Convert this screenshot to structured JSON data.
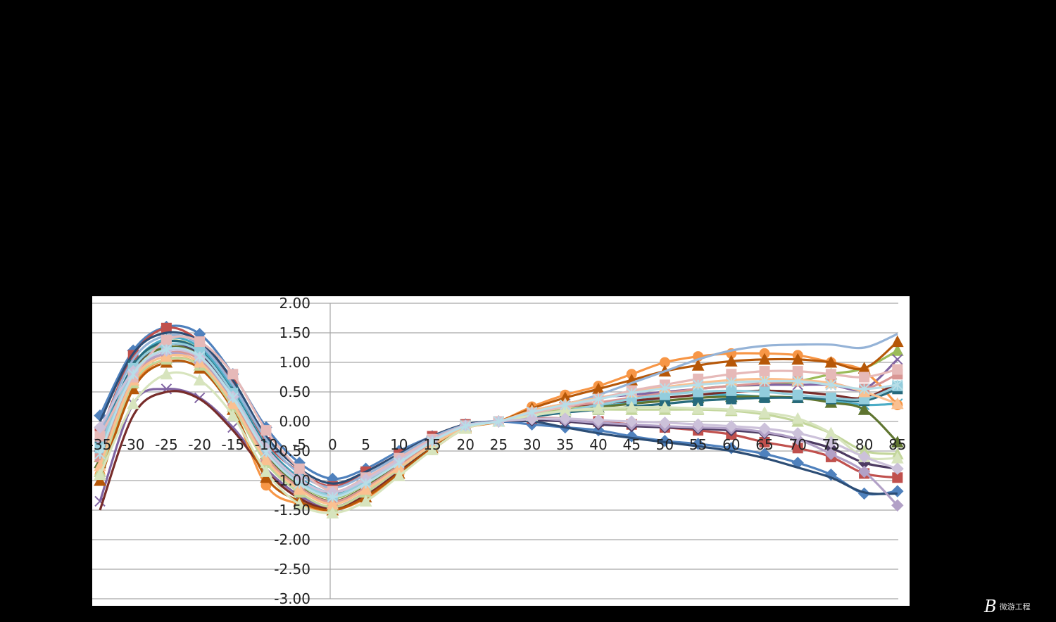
{
  "watermark": {
    "logo_letter": "B",
    "text": "微游工程"
  },
  "chart_data": {
    "type": "line",
    "title": "",
    "xlabel": "",
    "ylabel": "",
    "categories": [
      -35,
      -30,
      -25,
      -20,
      -15,
      -10,
      -5,
      0,
      5,
      10,
      15,
      20,
      25,
      30,
      35,
      40,
      45,
      50,
      55,
      60,
      65,
      70,
      75,
      80,
      85
    ],
    "x_tick_labels": [
      "-35",
      "-30",
      "-25",
      "-20",
      "-15",
      "-10",
      "-5",
      "0",
      "5",
      "10",
      "15",
      "20",
      "25",
      "30",
      "35",
      "40",
      "45",
      "50",
      "55",
      "60",
      "65",
      "70",
      "75",
      "80",
      "85"
    ],
    "y_tick_labels": [
      "2.00",
      "1.50",
      "1.00",
      "0.50",
      "0.00",
      "-0.50",
      "-1.00",
      "-1.50",
      "-2.00",
      "-2.50",
      "-3.00"
    ],
    "ylim": [
      -3.0,
      2.0
    ],
    "y_step": 0.5,
    "grid": true,
    "legend": "none",
    "series": [
      {
        "color": "#4f81bd",
        "marker": "diamond",
        "values": [
          0.1,
          1.2,
          1.6,
          1.48,
          0.8,
          -0.1,
          -0.7,
          -0.97,
          -0.8,
          -0.5,
          -0.25,
          -0.05,
          0.0,
          -0.05,
          -0.1,
          -0.15,
          -0.25,
          -0.33,
          -0.38,
          -0.45,
          -0.55,
          -0.7,
          -0.9,
          -1.22,
          -1.18
        ]
      },
      {
        "color": "#c0504d",
        "marker": "square",
        "values": [
          -0.2,
          1.12,
          1.58,
          1.35,
          0.65,
          -0.35,
          -0.85,
          -1.1,
          -0.85,
          -0.55,
          -0.25,
          -0.05,
          0.0,
          0.05,
          0.05,
          0.0,
          -0.05,
          -0.1,
          -0.15,
          -0.22,
          -0.35,
          -0.45,
          -0.6,
          -0.88,
          -0.95
        ]
      },
      {
        "color": "#9bbb59",
        "marker": "triangle",
        "values": [
          -0.6,
          0.9,
          1.35,
          1.2,
          0.45,
          -0.5,
          -1.05,
          -1.3,
          -1.05,
          -0.7,
          -0.35,
          -0.08,
          0.0,
          0.12,
          0.2,
          0.28,
          0.38,
          0.45,
          0.55,
          0.6,
          0.62,
          0.68,
          0.8,
          0.9,
          1.2
        ]
      },
      {
        "color": "#8064a2",
        "marker": "x",
        "values": [
          -1.35,
          0.3,
          0.55,
          0.4,
          -0.1,
          -0.8,
          -1.25,
          -1.45,
          -1.2,
          -0.8,
          -0.4,
          -0.1,
          0.0,
          0.18,
          0.3,
          0.4,
          0.45,
          0.5,
          0.55,
          0.6,
          0.62,
          0.62,
          0.62,
          0.55,
          1.05
        ]
      },
      {
        "color": "#4bacc6",
        "marker": "star",
        "values": [
          -0.3,
          0.95,
          1.4,
          1.25,
          0.55,
          -0.4,
          -0.95,
          -1.2,
          -0.95,
          -0.65,
          -0.3,
          -0.06,
          0.0,
          0.1,
          0.18,
          0.25,
          0.32,
          0.4,
          0.45,
          0.45,
          0.42,
          0.4,
          0.35,
          0.28,
          0.3
        ]
      },
      {
        "color": "#f79646",
        "marker": "circle",
        "values": [
          -0.9,
          0.6,
          1.05,
          0.95,
          0.2,
          -1.08,
          -1.4,
          -1.5,
          -1.3,
          -0.9,
          -0.48,
          -0.12,
          0.0,
          0.25,
          0.45,
          0.6,
          0.8,
          1.0,
          1.1,
          1.15,
          1.15,
          1.12,
          1.0,
          0.85,
          0.28
        ]
      },
      {
        "color": "#2c4d75",
        "marker": "none",
        "values": [
          0.0,
          1.15,
          1.5,
          1.35,
          0.7,
          -0.25,
          -0.8,
          -1.05,
          -0.85,
          -0.55,
          -0.25,
          -0.05,
          0.0,
          0.0,
          -0.1,
          -0.2,
          -0.28,
          -0.35,
          -0.42,
          -0.5,
          -0.62,
          -0.78,
          -0.95,
          -1.2,
          -1.22
        ]
      },
      {
        "color": "#772c2a",
        "marker": "none",
        "values": [
          -1.5,
          0.1,
          0.5,
          0.38,
          -0.15,
          -0.85,
          -1.3,
          -1.48,
          -1.25,
          -0.85,
          -0.42,
          -0.1,
          0.0,
          0.15,
          0.25,
          0.3,
          0.35,
          0.4,
          0.45,
          0.5,
          0.52,
          0.5,
          0.45,
          0.4,
          0.65
        ]
      },
      {
        "color": "#5f7530",
        "marker": "triangle",
        "values": [
          -0.7,
          0.85,
          1.25,
          1.12,
          0.4,
          -0.55,
          -1.1,
          -1.35,
          -1.1,
          -0.72,
          -0.36,
          -0.08,
          0.0,
          0.1,
          0.18,
          0.24,
          0.3,
          0.35,
          0.4,
          0.42,
          0.42,
          0.4,
          0.32,
          0.2,
          -0.35
        ]
      },
      {
        "color": "#4d3b62",
        "marker": "diamond",
        "values": [
          -0.5,
          0.88,
          1.3,
          1.15,
          0.45,
          -0.45,
          -1.0,
          -1.25,
          -1.0,
          -0.66,
          -0.32,
          -0.07,
          0.0,
          0.02,
          0.0,
          -0.05,
          -0.08,
          -0.1,
          -0.12,
          -0.15,
          -0.2,
          -0.3,
          -0.45,
          -0.7,
          -0.8
        ]
      },
      {
        "color": "#276a7c",
        "marker": "square",
        "values": [
          -0.4,
          0.95,
          1.35,
          1.2,
          0.5,
          -0.42,
          -0.98,
          -1.22,
          -0.98,
          -0.65,
          -0.31,
          -0.07,
          0.0,
          0.08,
          0.15,
          0.2,
          0.25,
          0.3,
          0.35,
          0.38,
          0.4,
          0.4,
          0.38,
          0.35,
          0.55
        ]
      },
      {
        "color": "#b65708",
        "marker": "triangle",
        "values": [
          -1.0,
          0.55,
          1.0,
          0.9,
          0.2,
          -0.95,
          -1.35,
          -1.5,
          -1.28,
          -0.88,
          -0.45,
          -0.11,
          0.0,
          0.22,
          0.4,
          0.55,
          0.7,
          0.85,
          0.95,
          1.02,
          1.05,
          1.05,
          1.0,
          0.9,
          1.35
        ]
      },
      {
        "color": "#95b3d7",
        "marker": "none",
        "values": [
          -0.2,
          1.05,
          1.45,
          1.3,
          0.62,
          -0.3,
          -0.88,
          -1.12,
          -0.9,
          -0.58,
          -0.27,
          -0.06,
          0.0,
          0.12,
          0.28,
          0.45,
          0.65,
          0.85,
          1.05,
          1.2,
          1.28,
          1.3,
          1.3,
          1.25,
          1.48
        ]
      },
      {
        "color": "#d99694",
        "marker": "square",
        "values": [
          -0.6,
          0.75,
          1.15,
          1.05,
          0.35,
          -0.6,
          -1.12,
          -1.36,
          -1.12,
          -0.75,
          -0.38,
          -0.09,
          0.0,
          0.15,
          0.25,
          0.32,
          0.4,
          0.48,
          0.55,
          0.6,
          0.65,
          0.68,
          0.65,
          0.55,
          0.8
        ]
      },
      {
        "color": "#c3d69b",
        "marker": "triangle",
        "values": [
          -0.85,
          0.65,
          1.05,
          0.95,
          0.25,
          -0.7,
          -1.2,
          -1.45,
          -1.2,
          -0.8,
          -0.4,
          -0.1,
          0.0,
          0.12,
          0.18,
          0.2,
          0.2,
          0.2,
          0.2,
          0.18,
          0.12,
          0.0,
          -0.2,
          -0.5,
          -0.55
        ]
      },
      {
        "color": "#b2a1c7",
        "marker": "diamond",
        "values": [
          -0.3,
          0.8,
          1.15,
          1.0,
          0.4,
          -0.5,
          -1.0,
          -1.2,
          -0.98,
          -0.66,
          -0.32,
          -0.07,
          0.0,
          0.05,
          0.02,
          -0.02,
          -0.05,
          -0.08,
          -0.1,
          -0.12,
          -0.18,
          -0.3,
          -0.55,
          -0.85,
          -1.42
        ]
      },
      {
        "color": "#93cddd",
        "marker": "square",
        "values": [
          -0.45,
          0.9,
          1.3,
          1.18,
          0.48,
          -0.45,
          -1.0,
          -1.25,
          -1.0,
          -0.67,
          -0.32,
          -0.07,
          0.0,
          0.1,
          0.18,
          0.28,
          0.38,
          0.45,
          0.5,
          0.52,
          0.5,
          0.45,
          0.4,
          0.38,
          0.6
        ]
      },
      {
        "color": "#fac090",
        "marker": "triangle",
        "values": [
          -0.75,
          0.7,
          1.1,
          1.0,
          0.3,
          -0.65,
          -1.15,
          -1.4,
          -1.15,
          -0.78,
          -0.39,
          -0.1,
          0.0,
          0.18,
          0.3,
          0.4,
          0.5,
          0.58,
          0.65,
          0.7,
          0.72,
          0.7,
          0.65,
          0.5,
          0.3
        ]
      },
      {
        "color": "#e6b9b8",
        "marker": "square",
        "values": [
          -0.25,
          0.75,
          1.38,
          1.35,
          0.8,
          -0.15,
          -0.8,
          -1.18,
          -0.95,
          -0.62,
          -0.3,
          -0.07,
          0.0,
          0.14,
          0.25,
          0.38,
          0.52,
          0.62,
          0.72,
          0.8,
          0.85,
          0.85,
          0.8,
          0.75,
          0.88
        ]
      },
      {
        "color": "#d7e4bd",
        "marker": "triangle",
        "values": [
          -0.9,
          0.3,
          0.8,
          0.7,
          0.1,
          -0.85,
          -1.4,
          -1.55,
          -1.35,
          -0.92,
          -0.48,
          -0.12,
          0.0,
          0.1,
          0.18,
          0.22,
          0.24,
          0.24,
          0.22,
          0.2,
          0.15,
          0.05,
          -0.2,
          -0.6,
          -0.62
        ]
      },
      {
        "color": "#ccc1da",
        "marker": "diamond",
        "values": [
          -0.1,
          0.85,
          1.2,
          1.08,
          0.42,
          -0.45,
          -0.98,
          -1.2,
          -0.98,
          -0.66,
          -0.32,
          -0.07,
          0.0,
          0.04,
          0.05,
          0.02,
          0.0,
          -0.02,
          -0.05,
          -0.08,
          -0.12,
          -0.2,
          -0.35,
          -0.6,
          -0.8
        ]
      },
      {
        "color": "#b7dee8",
        "marker": "star",
        "values": [
          -0.55,
          0.8,
          1.22,
          1.1,
          0.4,
          -0.52,
          -1.05,
          -1.28,
          -1.05,
          -0.7,
          -0.34,
          -0.08,
          0.0,
          0.16,
          0.28,
          0.38,
          0.48,
          0.56,
          0.62,
          0.66,
          0.68,
          0.68,
          0.62,
          0.55,
          0.62
        ]
      }
    ]
  }
}
